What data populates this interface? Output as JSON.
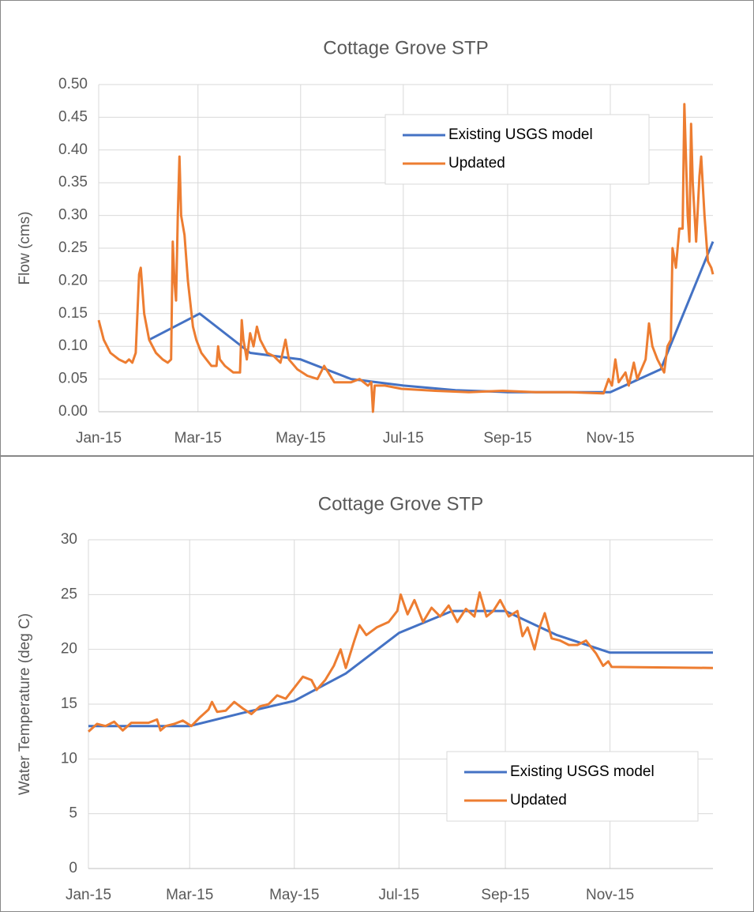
{
  "chart_data": [
    {
      "type": "line",
      "title": "Cottage Grove STP",
      "y_label": "Flow (cms)",
      "grid": true,
      "legend": "upper right",
      "xlim": [
        0,
        365
      ],
      "xticks": [
        {
          "value": 0,
          "label": "Jan-15"
        },
        {
          "value": 59,
          "label": "Mar-15"
        },
        {
          "value": 120,
          "label": "May-15"
        },
        {
          "value": 181,
          "label": "Jul-15"
        },
        {
          "value": 243,
          "label": "Sep-15"
        },
        {
          "value": 304,
          "label": "Nov-15"
        }
      ],
      "ylim": [
        0,
        0.5
      ],
      "yticks": [
        {
          "value": 0,
          "label": "0.00"
        },
        {
          "value": 0.05,
          "label": "0.05"
        },
        {
          "value": 0.1,
          "label": "0.10"
        },
        {
          "value": 0.15,
          "label": "0.15"
        },
        {
          "value": 0.2,
          "label": "0.20"
        },
        {
          "value": 0.25,
          "label": "0.25"
        },
        {
          "value": 0.3,
          "label": "0.30"
        },
        {
          "value": 0.35,
          "label": "0.35"
        },
        {
          "value": 0.4,
          "label": "0.40"
        },
        {
          "value": 0.45,
          "label": "0.45"
        },
        {
          "value": 0.5,
          "label": "0.50"
        }
      ],
      "series": [
        {
          "name": "Existing USGS model",
          "color": "#4472c4",
          "x": [
            30,
            60,
            90,
            120,
            150,
            181,
            212,
            243,
            273,
            304,
            334,
            365
          ],
          "values": [
            0.11,
            0.15,
            0.09,
            0.08,
            0.05,
            0.04,
            0.033,
            0.03,
            0.03,
            0.03,
            0.065,
            0.26
          ]
        },
        {
          "name": "Updated",
          "color": "#ed7d31",
          "x": [
            0,
            3,
            7,
            12,
            16,
            18,
            20,
            22,
            24,
            25,
            27,
            30,
            34,
            38,
            41,
            43,
            44,
            45,
            46,
            47,
            48,
            49,
            51,
            53,
            56,
            58,
            61,
            64,
            67,
            70,
            71,
            72,
            75,
            80,
            84,
            85,
            86,
            88,
            90,
            92,
            94,
            96,
            100,
            104,
            108,
            111,
            113,
            118,
            124,
            130,
            134,
            140,
            150,
            155,
            160,
            162,
            163,
            164,
            170,
            180,
            200,
            220,
            240,
            260,
            280,
            300,
            303,
            305,
            307,
            309,
            313,
            315,
            318,
            320,
            325,
            327,
            329,
            332,
            336,
            338,
            340,
            341,
            343,
            345,
            347,
            348,
            350,
            351,
            352,
            353,
            355,
            357,
            358,
            360,
            362,
            364,
            365
          ],
          "values": [
            0.14,
            0.11,
            0.09,
            0.08,
            0.075,
            0.08,
            0.075,
            0.09,
            0.21,
            0.22,
            0.15,
            0.11,
            0.09,
            0.08,
            0.075,
            0.08,
            0.26,
            0.2,
            0.17,
            0.3,
            0.39,
            0.3,
            0.27,
            0.2,
            0.13,
            0.11,
            0.09,
            0.08,
            0.07,
            0.07,
            0.1,
            0.08,
            0.07,
            0.06,
            0.06,
            0.14,
            0.11,
            0.08,
            0.12,
            0.1,
            0.13,
            0.11,
            0.09,
            0.085,
            0.075,
            0.11,
            0.08,
            0.065,
            0.055,
            0.05,
            0.07,
            0.045,
            0.045,
            0.05,
            0.04,
            0.045,
            0.0,
            0.04,
            0.04,
            0.035,
            0.032,
            0.03,
            0.032,
            0.03,
            0.03,
            0.028,
            0.05,
            0.04,
            0.08,
            0.045,
            0.06,
            0.04,
            0.075,
            0.05,
            0.08,
            0.135,
            0.1,
            0.08,
            0.06,
            0.1,
            0.11,
            0.25,
            0.22,
            0.28,
            0.28,
            0.47,
            0.3,
            0.26,
            0.44,
            0.35,
            0.26,
            0.36,
            0.39,
            0.3,
            0.23,
            0.22,
            0.21
          ]
        }
      ]
    },
    {
      "type": "line",
      "title": "Cottage Grove STP",
      "y_label": "Water Temperature (deg C)",
      "grid": true,
      "legend": "lower right",
      "xlim": [
        0,
        364
      ],
      "xticks": [
        {
          "value": 0,
          "label": "Jan-15"
        },
        {
          "value": 59,
          "label": "Mar-15"
        },
        {
          "value": 120,
          "label": "May-15"
        },
        {
          "value": 181,
          "label": "Jul-15"
        },
        {
          "value": 243,
          "label": "Sep-15"
        },
        {
          "value": 304,
          "label": "Nov-15"
        }
      ],
      "ylim": [
        0,
        30
      ],
      "yticks": [
        0,
        5,
        10,
        15,
        20,
        25,
        30
      ],
      "series": [
        {
          "name": "Existing USGS model",
          "color": "#4472c4",
          "x": [
            0,
            59,
            90,
            120,
            150,
            181,
            212,
            243,
            273,
            304,
            364
          ],
          "values": [
            13,
            13,
            14.2,
            15.3,
            17.8,
            21.5,
            23.5,
            23.5,
            21.3,
            19.7,
            19.7
          ]
        },
        {
          "name": "Updated",
          "color": "#ed7d31",
          "x": [
            0,
            5,
            10,
            15,
            20,
            25,
            35,
            40,
            42,
            45,
            50,
            55,
            60,
            65,
            70,
            72,
            75,
            80,
            85,
            90,
            95,
            100,
            105,
            110,
            115,
            120,
            125,
            130,
            133,
            138,
            143,
            147,
            150,
            155,
            158,
            162,
            168,
            175,
            180,
            182,
            186,
            190,
            195,
            200,
            205,
            210,
            215,
            220,
            225,
            228,
            232,
            236,
            240,
            245,
            250,
            253,
            256,
            260,
            263,
            266,
            270,
            275,
            280,
            285,
            290,
            293,
            296,
            300,
            303,
            305,
            364
          ],
          "values": [
            12.5,
            13.2,
            13,
            13.4,
            12.6,
            13.3,
            13.3,
            13.6,
            12.6,
            13,
            13.2,
            13.5,
            13,
            13.8,
            14.5,
            15.2,
            14.3,
            14.4,
            15.2,
            14.6,
            14.1,
            14.8,
            15,
            15.8,
            15.5,
            16.5,
            17.5,
            17.2,
            16.3,
            17.2,
            18.5,
            20,
            18.3,
            20.8,
            22.2,
            21.3,
            22,
            22.5,
            23.5,
            25,
            23.2,
            24.5,
            22.5,
            23.8,
            23,
            24,
            22.5,
            23.7,
            23,
            25.2,
            23,
            23.5,
            24.5,
            23,
            23.5,
            21.2,
            22,
            20,
            22,
            23.3,
            21,
            20.8,
            20.4,
            20.4,
            20.8,
            20.2,
            19.6,
            18.5,
            18.9,
            18.4,
            18.3
          ]
        }
      ]
    }
  ]
}
